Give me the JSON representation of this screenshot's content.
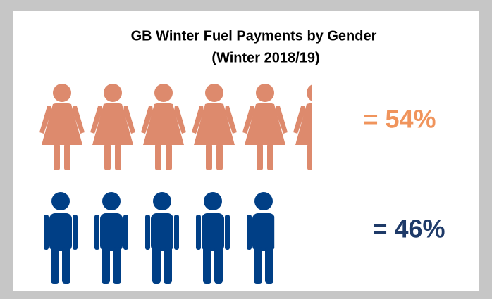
{
  "chart_data": {
    "type": "pictogram",
    "title": "GB Winter Fuel Payments by Gender",
    "subtitle": "(Winter 2018/19)",
    "categories": [
      null,
      null
    ],
    "values": [
      54,
      46
    ],
    "value_labels": [
      "= 54%",
      "= 46%"
    ],
    "colors": [
      "#dd8a6d",
      "#003f86"
    ],
    "label_colors": [
      "#f0945c",
      "#1e3a68"
    ]
  }
}
